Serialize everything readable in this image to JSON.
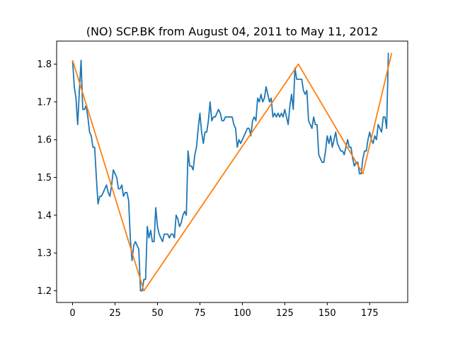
{
  "chart_data": {
    "type": "line",
    "title": "(NO) SCP.BK from August 04, 2011 to May 11, 2012",
    "xlabel": "",
    "ylabel": "",
    "xlim": [
      -9.4,
      197.4
    ],
    "ylim": [
      1.169,
      1.861
    ],
    "xticks": [
      0,
      25,
      50,
      75,
      100,
      125,
      150,
      175
    ],
    "yticks": [
      1.2,
      1.3,
      1.4,
      1.5,
      1.6,
      1.7,
      1.8
    ],
    "grid": false,
    "series": [
      {
        "color": "#1f77b4",
        "points": [
          [
            0,
            1.81
          ],
          [
            1,
            1.74
          ],
          [
            2,
            1.71
          ],
          [
            3,
            1.64
          ],
          [
            4,
            1.73
          ],
          [
            5,
            1.81
          ],
          [
            6,
            1.68
          ],
          [
            7,
            1.68
          ],
          [
            8,
            1.69
          ],
          [
            9,
            1.66
          ],
          [
            10,
            1.62
          ],
          [
            11,
            1.61
          ],
          [
            12,
            1.58
          ],
          [
            13,
            1.58
          ],
          [
            14,
            1.5
          ],
          [
            15,
            1.43
          ],
          [
            16,
            1.45
          ],
          [
            17,
            1.45
          ],
          [
            18,
            1.46
          ],
          [
            19,
            1.47
          ],
          [
            20,
            1.48
          ],
          [
            21,
            1.46
          ],
          [
            22,
            1.45
          ],
          [
            23,
            1.48
          ],
          [
            24,
            1.52
          ],
          [
            25,
            1.51
          ],
          [
            26,
            1.5
          ],
          [
            27,
            1.47
          ],
          [
            28,
            1.47
          ],
          [
            29,
            1.48
          ],
          [
            30,
            1.45
          ],
          [
            31,
            1.46
          ],
          [
            32,
            1.46
          ],
          [
            33,
            1.44
          ],
          [
            34,
            1.34
          ],
          [
            35,
            1.28
          ],
          [
            36,
            1.32
          ],
          [
            37,
            1.33
          ],
          [
            38,
            1.32
          ],
          [
            39,
            1.31
          ],
          [
            40,
            1.2
          ],
          [
            41,
            1.2
          ],
          [
            42,
            1.23
          ],
          [
            43,
            1.23
          ],
          [
            44,
            1.37
          ],
          [
            45,
            1.34
          ],
          [
            46,
            1.36
          ],
          [
            47,
            1.33
          ],
          [
            48,
            1.33
          ],
          [
            49,
            1.42
          ],
          [
            50,
            1.37
          ],
          [
            51,
            1.35
          ],
          [
            52,
            1.34
          ],
          [
            53,
            1.33
          ],
          [
            54,
            1.35
          ],
          [
            55,
            1.35
          ],
          [
            56,
            1.35
          ],
          [
            57,
            1.34
          ],
          [
            58,
            1.35
          ],
          [
            59,
            1.35
          ],
          [
            60,
            1.34
          ],
          [
            61,
            1.4
          ],
          [
            62,
            1.39
          ],
          [
            63,
            1.37
          ],
          [
            64,
            1.38
          ],
          [
            65,
            1.4
          ],
          [
            66,
            1.41
          ],
          [
            67,
            1.4
          ],
          [
            68,
            1.57
          ],
          [
            69,
            1.53
          ],
          [
            70,
            1.53
          ],
          [
            71,
            1.52
          ],
          [
            72,
            1.56
          ],
          [
            73,
            1.58
          ],
          [
            74,
            1.63
          ],
          [
            75,
            1.67
          ],
          [
            76,
            1.62
          ],
          [
            77,
            1.59
          ],
          [
            78,
            1.62
          ],
          [
            79,
            1.62
          ],
          [
            80,
            1.65
          ],
          [
            81,
            1.7
          ],
          [
            82,
            1.65
          ],
          [
            83,
            1.66
          ],
          [
            84,
            1.66
          ],
          [
            85,
            1.67
          ],
          [
            86,
            1.68
          ],
          [
            87,
            1.67
          ],
          [
            88,
            1.65
          ],
          [
            89,
            1.65
          ],
          [
            90,
            1.66
          ],
          [
            91,
            1.66
          ],
          [
            92,
            1.66
          ],
          [
            93,
            1.66
          ],
          [
            94,
            1.66
          ],
          [
            95,
            1.64
          ],
          [
            96,
            1.63
          ],
          [
            97,
            1.58
          ],
          [
            98,
            1.6
          ],
          [
            99,
            1.59
          ],
          [
            100,
            1.6
          ],
          [
            101,
            1.61
          ],
          [
            102,
            1.62
          ],
          [
            103,
            1.63
          ],
          [
            104,
            1.63
          ],
          [
            105,
            1.61
          ],
          [
            106,
            1.65
          ],
          [
            107,
            1.66
          ],
          [
            108,
            1.65
          ],
          [
            109,
            1.71
          ],
          [
            110,
            1.7
          ],
          [
            111,
            1.72
          ],
          [
            112,
            1.7
          ],
          [
            113,
            1.71
          ],
          [
            114,
            1.74
          ],
          [
            115,
            1.72
          ],
          [
            116,
            1.7
          ],
          [
            117,
            1.71
          ],
          [
            118,
            1.66
          ],
          [
            119,
            1.67
          ],
          [
            120,
            1.66
          ],
          [
            121,
            1.67
          ],
          [
            122,
            1.66
          ],
          [
            123,
            1.67
          ],
          [
            124,
            1.66
          ],
          [
            125,
            1.68
          ],
          [
            126,
            1.66
          ],
          [
            127,
            1.64
          ],
          [
            128,
            1.69
          ],
          [
            129,
            1.72
          ],
          [
            130,
            1.68
          ],
          [
            131,
            1.79
          ],
          [
            132,
            1.76
          ],
          [
            133,
            1.76
          ],
          [
            134,
            1.76
          ],
          [
            135,
            1.76
          ],
          [
            136,
            1.73
          ],
          [
            137,
            1.72
          ],
          [
            138,
            1.73
          ],
          [
            139,
            1.65
          ],
          [
            140,
            1.64
          ],
          [
            141,
            1.63
          ],
          [
            142,
            1.66
          ],
          [
            143,
            1.64
          ],
          [
            144,
            1.64
          ],
          [
            145,
            1.56
          ],
          [
            146,
            1.55
          ],
          [
            147,
            1.54
          ],
          [
            148,
            1.54
          ],
          [
            149,
            1.57
          ],
          [
            150,
            1.61
          ],
          [
            151,
            1.59
          ],
          [
            152,
            1.61
          ],
          [
            153,
            1.58
          ],
          [
            154,
            1.6
          ],
          [
            155,
            1.62
          ],
          [
            156,
            1.59
          ],
          [
            157,
            1.58
          ],
          [
            158,
            1.57
          ],
          [
            159,
            1.57
          ],
          [
            160,
            1.56
          ],
          [
            161,
            1.58
          ],
          [
            162,
            1.6
          ],
          [
            163,
            1.58
          ],
          [
            164,
            1.58
          ],
          [
            165,
            1.55
          ],
          [
            166,
            1.53
          ],
          [
            167,
            1.54
          ],
          [
            168,
            1.54
          ],
          [
            169,
            1.51
          ],
          [
            170,
            1.51
          ],
          [
            171,
            1.55
          ],
          [
            172,
            1.57
          ],
          [
            173,
            1.57
          ],
          [
            174,
            1.6
          ],
          [
            175,
            1.62
          ],
          [
            176,
            1.6
          ],
          [
            177,
            1.59
          ],
          [
            178,
            1.61
          ],
          [
            179,
            1.6
          ],
          [
            180,
            1.64
          ],
          [
            181,
            1.63
          ],
          [
            182,
            1.62
          ],
          [
            183,
            1.66
          ],
          [
            184,
            1.66
          ],
          [
            185,
            1.63
          ],
          [
            186,
            1.83
          ]
        ]
      },
      {
        "color": "#ff7f0e",
        "points": [
          [
            0,
            1.81
          ],
          [
            42,
            1.2
          ],
          [
            133,
            1.8
          ],
          [
            171,
            1.51
          ],
          [
            188,
            1.83
          ]
        ]
      }
    ]
  }
}
